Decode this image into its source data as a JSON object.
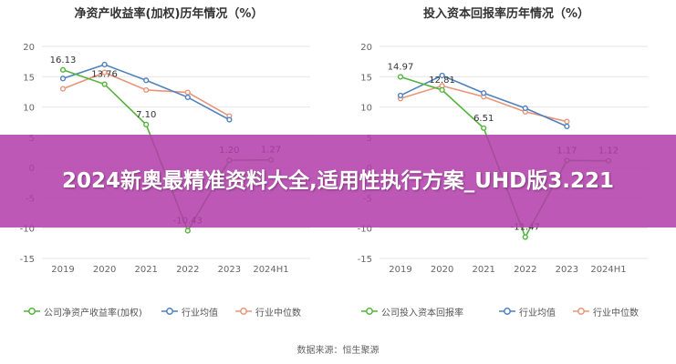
{
  "banner": {
    "text": "2024新奥最精准资料大全,适用性执行方案_UHD版3.221"
  },
  "source": "数据来源：恒生聚源",
  "chart_data": [
    {
      "type": "line",
      "title": "净资产收益率(加权)历年情况（%）",
      "categories": [
        "2019",
        "2020",
        "2021",
        "2022",
        "2023",
        "2024H1"
      ],
      "ylim": [
        -15,
        20
      ],
      "yticks": [
        20,
        15,
        10,
        5,
        0,
        -5,
        -10,
        -15
      ],
      "grid": true,
      "legend_position": "bottom",
      "series": [
        {
          "name": "公司净资产收益率(加权)",
          "color": "#52b43b",
          "values": [
            16.13,
            13.76,
            7.1,
            -10.43,
            1.2,
            1.27
          ],
          "labels": [
            "16.13",
            "13.76",
            "7.10",
            "-10.43",
            "1.20",
            "1.27"
          ]
        },
        {
          "name": "行业均值",
          "color": "#4f81bd",
          "values": [
            14.7,
            17.0,
            14.4,
            11.6,
            7.9,
            null
          ]
        },
        {
          "name": "行业中位数",
          "color": "#e8957a",
          "values": [
            13.0,
            15.7,
            12.8,
            12.4,
            8.5,
            null
          ]
        }
      ]
    },
    {
      "type": "line",
      "title": "投入资本回报率历年情况（%）",
      "categories": [
        "2019",
        "2020",
        "2021",
        "2022",
        "2023",
        "2024H1"
      ],
      "ylim": [
        -15,
        20
      ],
      "yticks": [
        20,
        15,
        10,
        5,
        0,
        -5,
        -10,
        -15
      ],
      "grid": true,
      "legend_position": "bottom",
      "series": [
        {
          "name": "公司投入资本回报率",
          "color": "#52b43b",
          "values": [
            14.97,
            12.81,
            6.51,
            -11.47,
            1.17,
            1.12
          ],
          "labels": [
            "14.97",
            "12.81",
            "6.51",
            "-11.47",
            "1.17",
            "1.12"
          ]
        },
        {
          "name": "行业均值",
          "color": "#4f81bd",
          "values": [
            11.9,
            15.2,
            12.3,
            9.8,
            6.8,
            null
          ]
        },
        {
          "name": "行业中位数",
          "color": "#e8957a",
          "values": [
            11.4,
            13.5,
            11.7,
            9.2,
            7.6,
            null
          ]
        }
      ]
    }
  ]
}
